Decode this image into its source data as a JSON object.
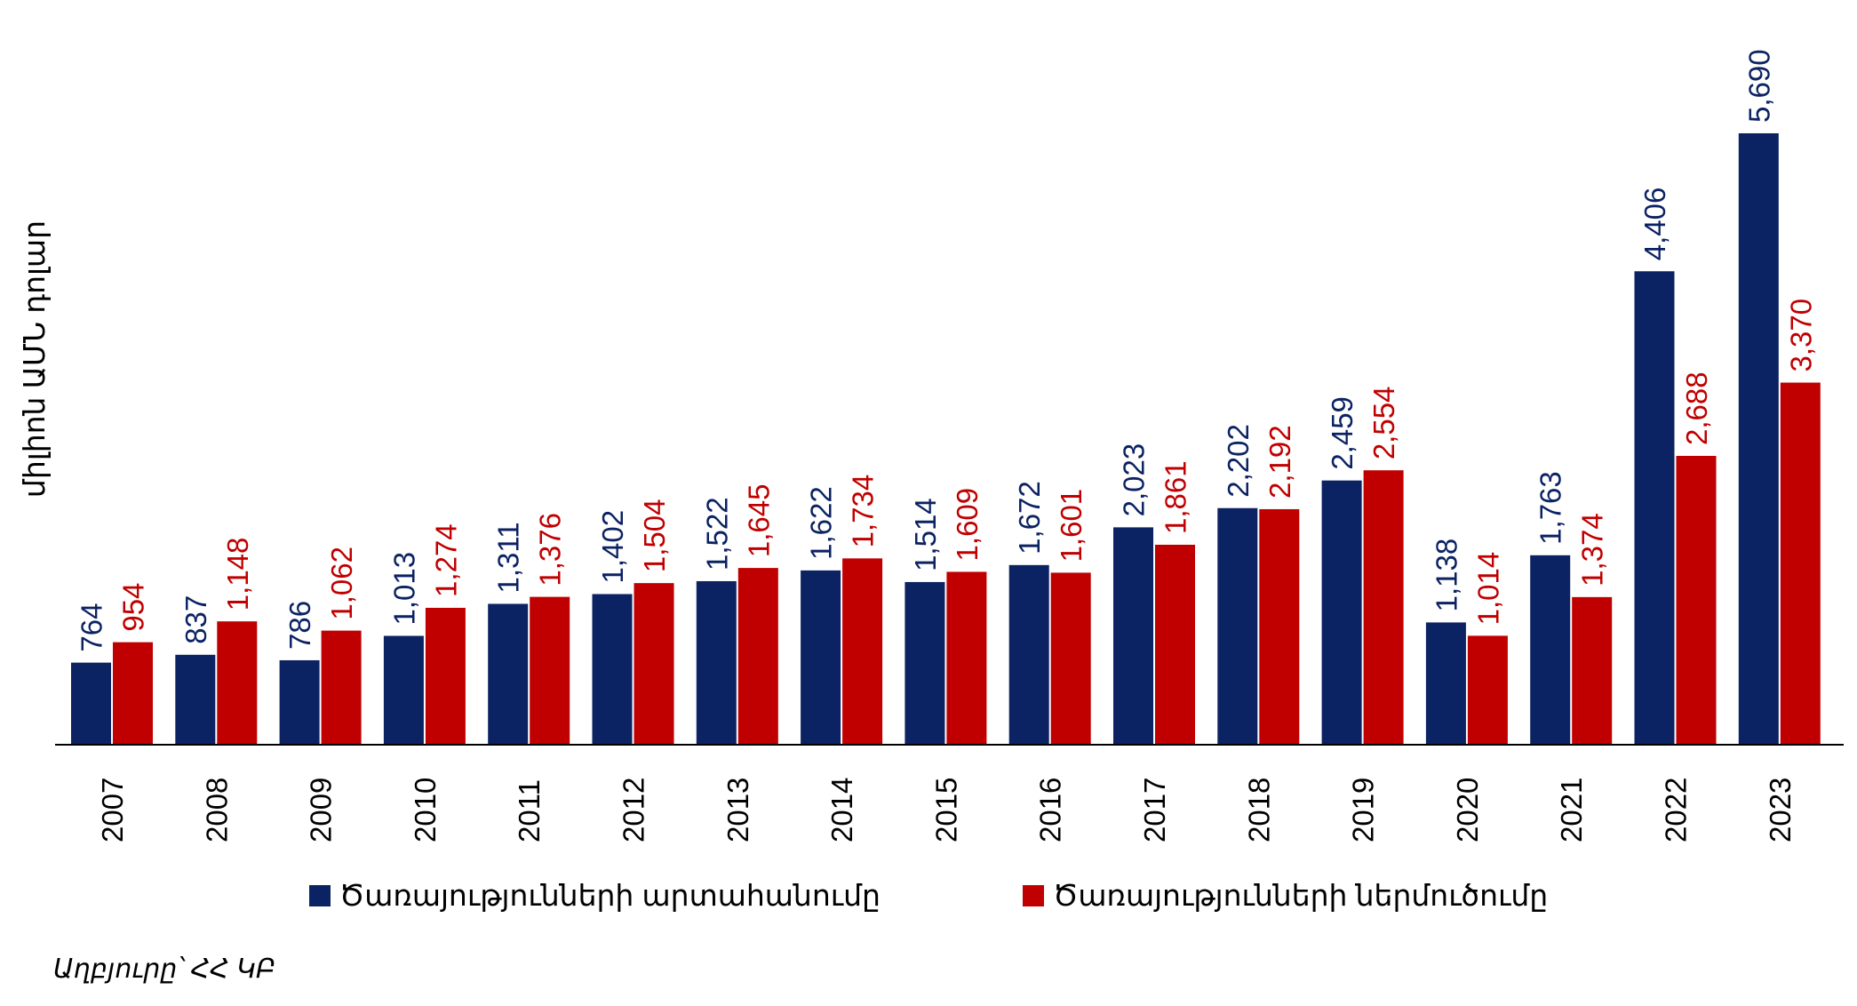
{
  "colors": {
    "series_a": "#0B2263",
    "series_b": "#C00000",
    "axis": "#000000"
  },
  "chart_data": {
    "type": "bar",
    "ylabel": "միլիոն ԱՄՆ դոլար",
    "ylim": [
      0,
      6000
    ],
    "grid": false,
    "legend_position": "bottom",
    "categories": [
      "2007",
      "2008",
      "2009",
      "2010",
      "2011",
      "2012",
      "2013",
      "2014",
      "2015",
      "2016",
      "2017",
      "2018",
      "2019",
      "2020",
      "2021",
      "2022",
      "2023"
    ],
    "series": [
      {
        "name": "Ծառայությունների արտահանումը",
        "values": [
          764,
          837,
          786,
          1013,
          1311,
          1402,
          1522,
          1622,
          1514,
          1672,
          2023,
          2202,
          2459,
          1138,
          1763,
          4406,
          5690
        ],
        "labels": [
          "764",
          "837",
          "786",
          "1,013",
          "1,311",
          "1,402",
          "1,522",
          "1,622",
          "1,514",
          "1,672",
          "2,023",
          "2,202",
          "2,459",
          "1,138",
          "1,763",
          "4,406",
          "5,690"
        ]
      },
      {
        "name": "Ծառայությունների ներմուծումը",
        "values": [
          954,
          1148,
          1062,
          1274,
          1376,
          1504,
          1645,
          1734,
          1609,
          1601,
          1861,
          2192,
          2554,
          1014,
          1374,
          2688,
          3370
        ],
        "labels": [
          "954",
          "1,148",
          "1,062",
          "1,274",
          "1,376",
          "1,504",
          "1,645",
          "1,734",
          "1,609",
          "1,601",
          "1,861",
          "2,192",
          "2,554",
          "1,014",
          "1,374",
          "2,688",
          "3,370"
        ]
      }
    ]
  },
  "source_note": "Աղբյուրը՝ ՀՀ ԿԲ"
}
